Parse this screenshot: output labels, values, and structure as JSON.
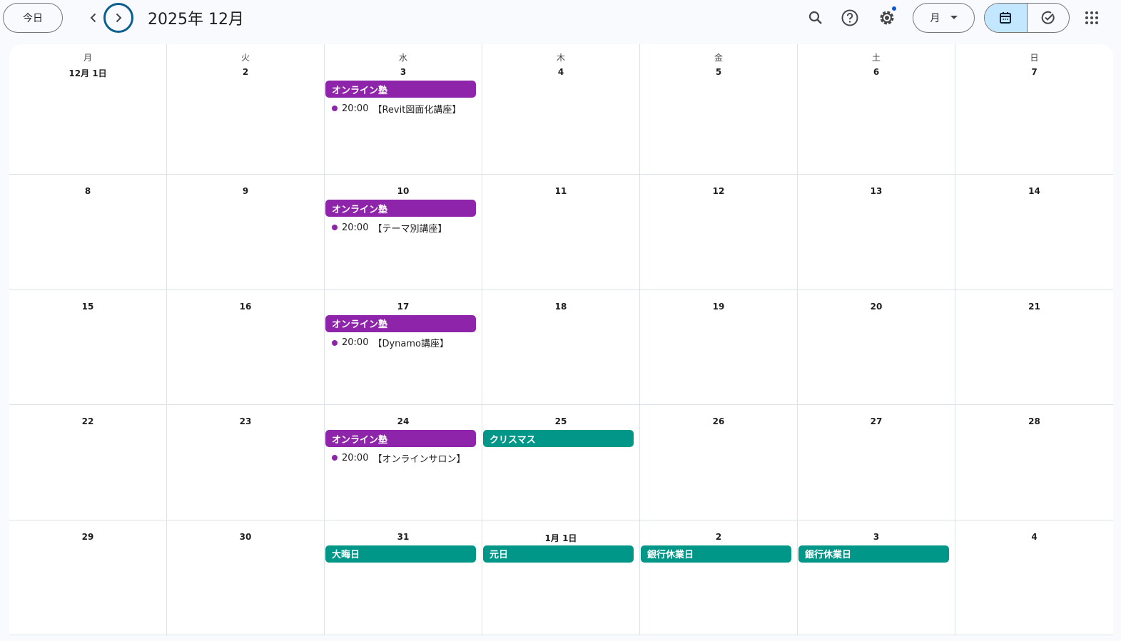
{
  "header": {
    "today_label": "今日",
    "title": "2025年 12月",
    "view_label": "月",
    "icons": [
      "search-icon",
      "help-icon",
      "settings-icon",
      "calendar-icon",
      "tasks-icon",
      "apps-icon"
    ]
  },
  "colors": {
    "purple": "#8e24aa",
    "teal": "#009688",
    "accent": "#0b57d0"
  },
  "weekdays": [
    "月",
    "火",
    "水",
    "木",
    "金",
    "土",
    "日"
  ],
  "weeks": [
    [
      {
        "d": "12月 1日"
      },
      {
        "d": "2"
      },
      {
        "d": "3",
        "events": [
          {
            "type": "chip",
            "title": "オンライン塾",
            "color": "purple"
          },
          {
            "type": "timed",
            "time": "20:00",
            "title": "【Revit図面化講座】",
            "color": "purple"
          }
        ]
      },
      {
        "d": "4"
      },
      {
        "d": "5"
      },
      {
        "d": "6"
      },
      {
        "d": "7"
      }
    ],
    [
      {
        "d": "8"
      },
      {
        "d": "9"
      },
      {
        "d": "10",
        "events": [
          {
            "type": "chip",
            "title": "オンライン塾",
            "color": "purple"
          },
          {
            "type": "timed",
            "time": "20:00",
            "title": "【テーマ別講座】",
            "color": "purple"
          }
        ]
      },
      {
        "d": "11"
      },
      {
        "d": "12"
      },
      {
        "d": "13"
      },
      {
        "d": "14"
      }
    ],
    [
      {
        "d": "15"
      },
      {
        "d": "16"
      },
      {
        "d": "17",
        "events": [
          {
            "type": "chip",
            "title": "オンライン塾",
            "color": "purple"
          },
          {
            "type": "timed",
            "time": "20:00",
            "title": "【Dynamo講座】",
            "color": "purple"
          }
        ]
      },
      {
        "d": "18"
      },
      {
        "d": "19"
      },
      {
        "d": "20"
      },
      {
        "d": "21"
      }
    ],
    [
      {
        "d": "22"
      },
      {
        "d": "23"
      },
      {
        "d": "24",
        "events": [
          {
            "type": "chip",
            "title": "オンライン塾",
            "color": "purple"
          },
          {
            "type": "timed",
            "time": "20:00",
            "title": "【オンラインサロン】",
            "color": "purple"
          }
        ]
      },
      {
        "d": "25",
        "events": [
          {
            "type": "chip",
            "title": "クリスマス",
            "color": "teal"
          }
        ]
      },
      {
        "d": "26"
      },
      {
        "d": "27"
      },
      {
        "d": "28"
      }
    ],
    [
      {
        "d": "29"
      },
      {
        "d": "30"
      },
      {
        "d": "31",
        "events": [
          {
            "type": "chip",
            "title": "大晦日",
            "color": "teal"
          }
        ]
      },
      {
        "d": "1月 1日",
        "events": [
          {
            "type": "chip",
            "title": "元日",
            "color": "teal"
          }
        ]
      },
      {
        "d": "2",
        "events": [
          {
            "type": "chip",
            "title": "銀行休業日",
            "color": "teal"
          }
        ]
      },
      {
        "d": "3",
        "events": [
          {
            "type": "chip",
            "title": "銀行休業日",
            "color": "teal"
          }
        ]
      },
      {
        "d": "4"
      }
    ]
  ]
}
